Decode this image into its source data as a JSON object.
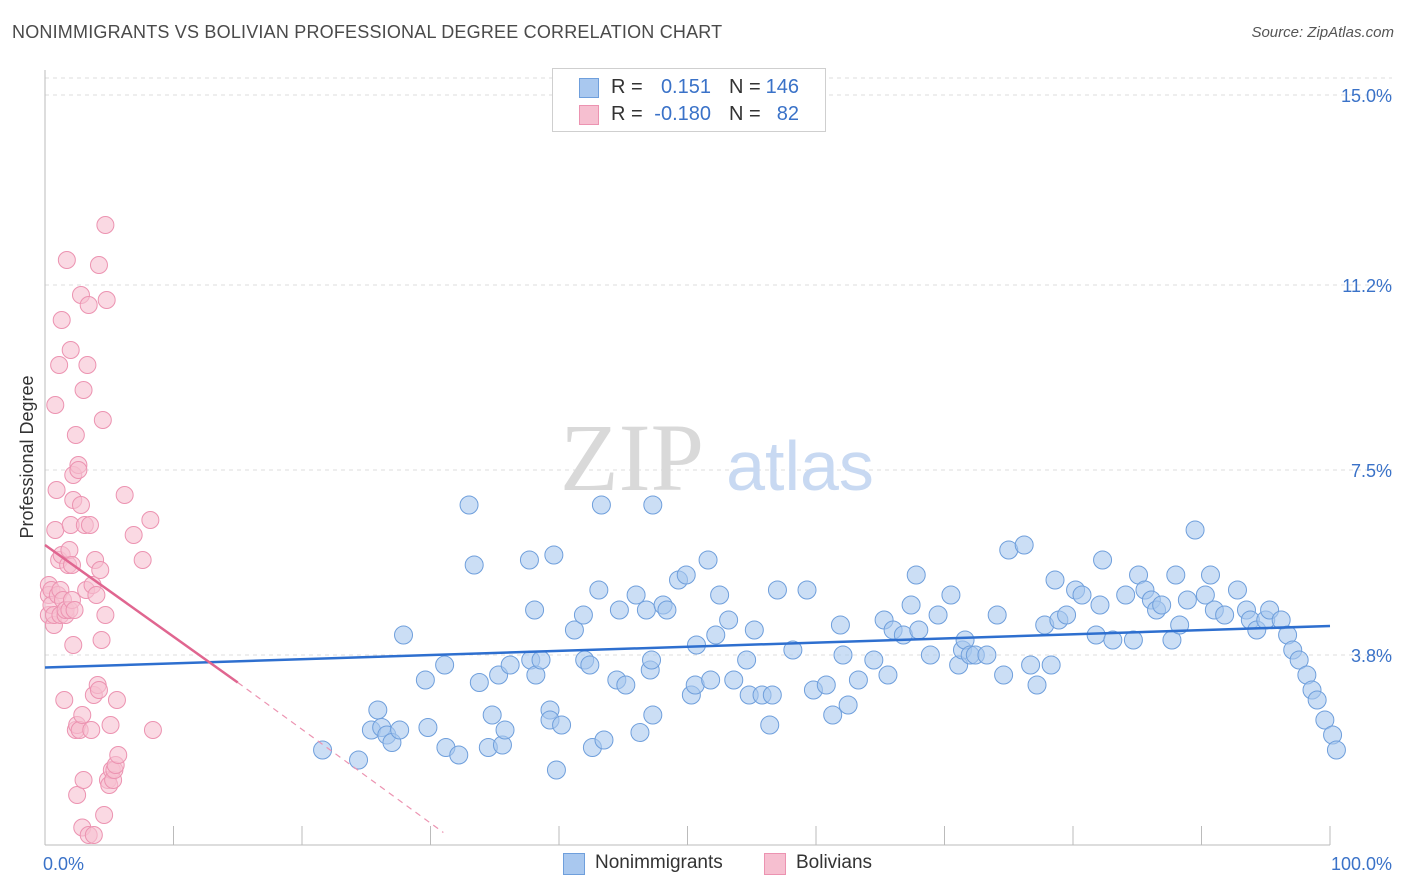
{
  "title": "NONIMMIGRANTS VS BOLIVIAN PROFESSIONAL DEGREE CORRELATION CHART",
  "source": "Source: ZipAtlas.com",
  "watermark": {
    "zip": "ZIP",
    "atlas": "atlas"
  },
  "legend": {
    "rows": [
      {
        "r_label": "R =",
        "r_value": "0.151",
        "n_label": "N =",
        "n_value": "146"
      },
      {
        "r_label": "R =",
        "r_value": "-0.180",
        "n_label": "N =",
        "n_value": "82"
      }
    ]
  },
  "bottom_legend": [
    "Nonimmigrants",
    "Bolivians"
  ],
  "colors": {
    "blue_fill": "#a9c8ef",
    "blue_stroke": "#6f9fdc",
    "blue_line": "#2e6fcf",
    "pink_fill": "#f6bfd0",
    "pink_stroke": "#ec93b1",
    "pink_line": "#e06690",
    "tick_text": "#3a72c8",
    "grid": "#dedede"
  },
  "chart_data": {
    "type": "scatter",
    "title": "NONIMMIGRANTS VS BOLIVIAN PROFESSIONAL DEGREE CORRELATION CHART",
    "xlabel": "",
    "ylabel": "Professional Degree",
    "xlim": [
      0,
      100
    ],
    "ylim": [
      0,
      15.5
    ],
    "x_tick_labels": [
      "0.0%",
      "100.0%"
    ],
    "y_ticks": [
      3.8,
      7.5,
      11.2,
      15.0
    ],
    "y_tick_labels": [
      "3.8%",
      "7.5%",
      "11.2%",
      "15.0%"
    ],
    "series": [
      {
        "name": "Nonimmigrants",
        "trend": {
          "x": [
            0,
            100
          ],
          "y": [
            3.55,
            4.38
          ]
        },
        "points": [
          [
            21.6,
            1.9
          ],
          [
            24.4,
            1.7
          ],
          [
            25.4,
            2.3
          ],
          [
            25.9,
            2.7
          ],
          [
            26.2,
            2.35
          ],
          [
            26.6,
            2.2
          ],
          [
            27.0,
            2.05
          ],
          [
            27.6,
            2.3
          ],
          [
            27.9,
            4.2
          ],
          [
            29.6,
            3.3
          ],
          [
            29.8,
            2.35
          ],
          [
            31.1,
            3.6
          ],
          [
            31.2,
            1.95
          ],
          [
            32.2,
            1.8
          ],
          [
            33.0,
            6.8
          ],
          [
            33.4,
            5.6
          ],
          [
            33.8,
            3.25
          ],
          [
            34.5,
            1.95
          ],
          [
            34.8,
            2.6
          ],
          [
            35.3,
            3.4
          ],
          [
            35.6,
            2.0
          ],
          [
            35.8,
            2.3
          ],
          [
            36.2,
            3.6
          ],
          [
            37.7,
            5.7
          ],
          [
            37.8,
            3.7
          ],
          [
            38.1,
            4.7
          ],
          [
            38.2,
            3.4
          ],
          [
            38.6,
            3.7
          ],
          [
            39.3,
            2.7
          ],
          [
            39.3,
            2.5
          ],
          [
            39.6,
            5.8
          ],
          [
            39.8,
            1.5
          ],
          [
            40.2,
            2.4
          ],
          [
            41.2,
            4.3
          ],
          [
            41.9,
            4.6
          ],
          [
            42.0,
            3.7
          ],
          [
            42.4,
            3.6
          ],
          [
            42.6,
            1.95
          ],
          [
            43.1,
            5.1
          ],
          [
            43.3,
            6.8
          ],
          [
            43.5,
            2.1
          ],
          [
            44.5,
            3.3
          ],
          [
            44.7,
            4.7
          ],
          [
            45.2,
            3.2
          ],
          [
            46.0,
            5.0
          ],
          [
            46.3,
            2.25
          ],
          [
            46.8,
            4.7
          ],
          [
            47.1,
            3.5
          ],
          [
            47.2,
            3.7
          ],
          [
            47.3,
            6.8
          ],
          [
            47.3,
            2.6
          ],
          [
            48.1,
            4.8
          ],
          [
            48.4,
            4.7
          ],
          [
            49.3,
            5.3
          ],
          [
            49.9,
            5.4
          ],
          [
            50.3,
            3.0
          ],
          [
            50.6,
            3.2
          ],
          [
            50.7,
            4.0
          ],
          [
            51.6,
            5.7
          ],
          [
            51.8,
            3.3
          ],
          [
            52.2,
            4.2
          ],
          [
            52.5,
            5.0
          ],
          [
            53.2,
            4.5
          ],
          [
            53.6,
            3.3
          ],
          [
            54.6,
            3.7
          ],
          [
            54.8,
            3.0
          ],
          [
            55.2,
            4.3
          ],
          [
            55.8,
            3.0
          ],
          [
            56.4,
            2.4
          ],
          [
            56.6,
            3.0
          ],
          [
            57.0,
            5.1
          ],
          [
            58.2,
            3.9
          ],
          [
            59.3,
            5.1
          ],
          [
            59.8,
            3.1
          ],
          [
            60.8,
            3.2
          ],
          [
            61.3,
            2.6
          ],
          [
            61.9,
            4.4
          ],
          [
            62.1,
            3.8
          ],
          [
            62.5,
            2.8
          ],
          [
            63.3,
            3.3
          ],
          [
            64.5,
            3.7
          ],
          [
            65.3,
            4.5
          ],
          [
            65.6,
            3.4
          ],
          [
            66.0,
            4.3
          ],
          [
            66.8,
            4.2
          ],
          [
            67.4,
            4.8
          ],
          [
            67.8,
            5.4
          ],
          [
            68.0,
            4.3
          ],
          [
            68.9,
            3.8
          ],
          [
            69.5,
            4.6
          ],
          [
            70.5,
            5.0
          ],
          [
            71.1,
            3.6
          ],
          [
            71.4,
            3.9
          ],
          [
            71.6,
            4.1
          ],
          [
            72.0,
            3.8
          ],
          [
            72.4,
            3.8
          ],
          [
            73.3,
            3.8
          ],
          [
            74.1,
            4.6
          ],
          [
            74.6,
            3.4
          ],
          [
            75.0,
            5.9
          ],
          [
            76.2,
            6.0
          ],
          [
            76.7,
            3.6
          ],
          [
            77.2,
            3.2
          ],
          [
            77.8,
            4.4
          ],
          [
            78.3,
            3.6
          ],
          [
            78.6,
            5.3
          ],
          [
            78.9,
            4.5
          ],
          [
            79.5,
            4.6
          ],
          [
            80.2,
            5.1
          ],
          [
            80.7,
            5.0
          ],
          [
            81.8,
            4.2
          ],
          [
            82.1,
            4.8
          ],
          [
            82.3,
            5.7
          ],
          [
            83.1,
            4.1
          ],
          [
            84.1,
            5.0
          ],
          [
            84.7,
            4.1
          ],
          [
            85.1,
            5.4
          ],
          [
            85.6,
            5.1
          ],
          [
            86.1,
            4.9
          ],
          [
            86.5,
            4.7
          ],
          [
            86.9,
            4.8
          ],
          [
            87.7,
            4.1
          ],
          [
            88.0,
            5.4
          ],
          [
            88.3,
            4.4
          ],
          [
            88.9,
            4.9
          ],
          [
            89.5,
            6.3
          ],
          [
            90.3,
            5.0
          ],
          [
            90.7,
            5.4
          ],
          [
            91.0,
            4.7
          ],
          [
            91.8,
            4.6
          ],
          [
            92.8,
            5.1
          ],
          [
            93.5,
            4.7
          ],
          [
            93.8,
            4.5
          ],
          [
            94.3,
            4.3
          ],
          [
            95.0,
            4.5
          ],
          [
            95.3,
            4.7
          ],
          [
            96.2,
            4.5
          ],
          [
            96.7,
            4.2
          ],
          [
            97.1,
            3.9
          ],
          [
            97.6,
            3.7
          ],
          [
            98.2,
            3.4
          ],
          [
            98.6,
            3.1
          ],
          [
            99.0,
            2.9
          ],
          [
            99.6,
            2.5
          ],
          [
            100.2,
            2.2
          ],
          [
            100.5,
            1.9
          ]
        ]
      },
      {
        "name": "Bolivians",
        "trend": {
          "x": [
            0,
            15
          ],
          "y": [
            6.0,
            3.25
          ],
          "dashed_x": [
            15,
            31
          ],
          "dashed_y": [
            3.25,
            0.25
          ]
        },
        "points": [
          [
            0.3,
            4.6
          ],
          [
            0.3,
            5.2
          ],
          [
            0.3,
            5.0
          ],
          [
            0.5,
            5.1
          ],
          [
            0.5,
            4.8
          ],
          [
            0.7,
            4.4
          ],
          [
            0.7,
            4.6
          ],
          [
            0.8,
            8.8
          ],
          [
            0.8,
            6.3
          ],
          [
            0.9,
            7.1
          ],
          [
            1.0,
            5.0
          ],
          [
            1.1,
            9.6
          ],
          [
            1.1,
            5.7
          ],
          [
            1.2,
            4.6
          ],
          [
            1.2,
            5.1
          ],
          [
            1.3,
            10.5
          ],
          [
            1.3,
            5.8
          ],
          [
            1.4,
            4.9
          ],
          [
            1.5,
            2.9
          ],
          [
            1.6,
            4.6
          ],
          [
            1.6,
            4.7
          ],
          [
            1.7,
            11.7
          ],
          [
            1.8,
            5.6
          ],
          [
            1.9,
            5.9
          ],
          [
            1.9,
            4.7
          ],
          [
            2.0,
            9.9
          ],
          [
            2.0,
            6.4
          ],
          [
            2.1,
            5.6
          ],
          [
            2.1,
            4.9
          ],
          [
            2.2,
            7.4
          ],
          [
            2.2,
            6.9
          ],
          [
            2.2,
            4.0
          ],
          [
            2.3,
            4.7
          ],
          [
            2.4,
            2.3
          ],
          [
            2.4,
            8.2
          ],
          [
            2.5,
            2.4
          ],
          [
            2.5,
            1.0
          ],
          [
            2.6,
            7.6
          ],
          [
            2.6,
            7.5
          ],
          [
            2.7,
            2.3
          ],
          [
            2.8,
            11.0
          ],
          [
            2.8,
            6.8
          ],
          [
            2.9,
            0.35
          ],
          [
            2.9,
            2.6
          ],
          [
            3.0,
            1.3
          ],
          [
            3.0,
            9.1
          ],
          [
            3.1,
            6.4
          ],
          [
            3.2,
            5.1
          ],
          [
            3.3,
            9.6
          ],
          [
            3.4,
            10.8
          ],
          [
            3.4,
            0.2
          ],
          [
            3.5,
            6.4
          ],
          [
            3.6,
            2.3
          ],
          [
            3.7,
            5.2
          ],
          [
            3.8,
            0.2
          ],
          [
            3.8,
            3.0
          ],
          [
            3.9,
            5.7
          ],
          [
            4.0,
            5.0
          ],
          [
            4.1,
            3.2
          ],
          [
            4.2,
            3.1
          ],
          [
            4.2,
            11.6
          ],
          [
            4.3,
            5.5
          ],
          [
            4.4,
            4.1
          ],
          [
            4.5,
            8.5
          ],
          [
            4.6,
            0.6
          ],
          [
            4.7,
            12.4
          ],
          [
            4.7,
            4.6
          ],
          [
            4.8,
            10.9
          ],
          [
            4.9,
            1.3
          ],
          [
            5.0,
            1.2
          ],
          [
            5.1,
            2.4
          ],
          [
            5.2,
            1.5
          ],
          [
            5.3,
            1.3
          ],
          [
            5.4,
            1.5
          ],
          [
            5.5,
            1.6
          ],
          [
            5.6,
            2.9
          ],
          [
            5.7,
            1.8
          ],
          [
            6.2,
            7.0
          ],
          [
            6.9,
            6.2
          ],
          [
            7.6,
            5.7
          ],
          [
            8.2,
            6.5
          ],
          [
            8.4,
            2.3
          ]
        ]
      }
    ]
  }
}
